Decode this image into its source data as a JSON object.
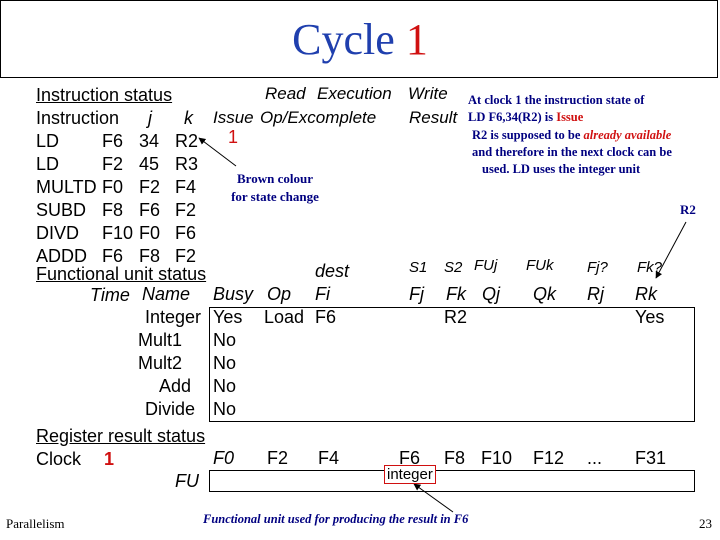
{
  "title": {
    "text": "Cycle ",
    "number": "1"
  },
  "instruction_status": {
    "label": "Instruction status",
    "h_read": "Read",
    "h_execution": "Execution",
    "h_write": "Write",
    "h_instruction": "Instruction",
    "h_j": "j",
    "h_k": "k",
    "h_issue": "Issue",
    "h_opexcomplete": "Op/Excomplete",
    "h_result": "Result",
    "rows": [
      {
        "op": "LD",
        "reg": "F6",
        "j": "34",
        "k": "R2",
        "issue": "1"
      },
      {
        "op": "LD",
        "reg": "F2",
        "j": "45",
        "k": "R3",
        "issue": ""
      },
      {
        "op": "MULTD",
        "reg": "F0",
        "j": "F2",
        "k": "F4",
        "issue": ""
      },
      {
        "op": "SUBD",
        "reg": "F8",
        "j": "F6",
        "k": "F2",
        "issue": ""
      },
      {
        "op": "DIVD",
        "reg": "F10",
        "j": "F0",
        "k": "F6",
        "issue": ""
      },
      {
        "op": "ADDD",
        "reg": "F6",
        "j": "F8",
        "k": "F2",
        "issue": ""
      }
    ]
  },
  "note": {
    "line1": "At clock 1 the instruction state of",
    "line2a": "LD F6,34(R2) is ",
    "line2b": "Issue",
    "line3a": "R2 is supposed to be ",
    "line3b": "already available",
    "line4": "and therefore in the next clock can be",
    "line5": "used. LD uses the integer unit"
  },
  "brown_note": {
    "line1": "Brown colour",
    "line2": "for state change"
  },
  "r2_label": "R2",
  "functional_unit_status": {
    "label": "Functional unit status",
    "h_dest": "dest",
    "h_s1": "S1",
    "h_s2": "S2",
    "h_fuj": "FUj",
    "h_fuk": "FUk",
    "h_fjq": "Fj?",
    "h_fkq": "Fk?",
    "h_time": "Time",
    "h_name": "Name",
    "h_busy": "Busy",
    "h_op": "Op",
    "h_fi": "Fi",
    "h_fj": "Fj",
    "h_fk": "Fk",
    "h_qj": "Qj",
    "h_qk": "Qk",
    "h_rj": "Rj",
    "h_rk": "Rk",
    "units": [
      {
        "name": "Integer",
        "busy": "Yes",
        "op": "Load",
        "fi": "F6",
        "fk": "R2",
        "rk": "Yes"
      },
      {
        "name": "Mult1",
        "busy": "No"
      },
      {
        "name": "Mult2",
        "busy": "No"
      },
      {
        "name": "Add",
        "busy": "No"
      },
      {
        "name": "Divide",
        "busy": "No"
      }
    ]
  },
  "register_result_status": {
    "label": "Register result status",
    "clock_label": "Clock",
    "clock_value": "1",
    "fu_label": "FU",
    "registers": [
      "F0",
      "F2",
      "F4",
      "F6",
      "F8",
      "F10",
      "F12",
      "...",
      "F31"
    ],
    "f6_unit": "integer"
  },
  "footnote": "Functional unit used for producing the result in F6",
  "footer": {
    "left": "Parallelism",
    "page": "23"
  },
  "colors": {
    "title": "#1f3fae",
    "accent": "#d01010",
    "note": "#000080"
  }
}
